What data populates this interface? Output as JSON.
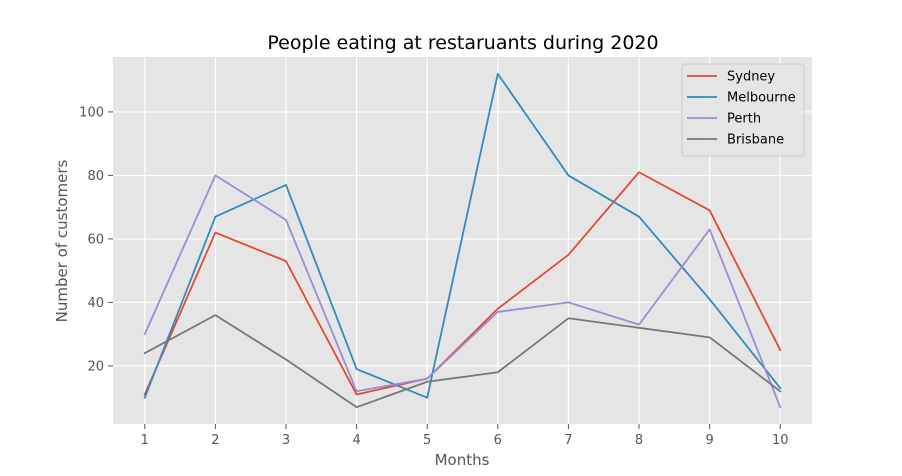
{
  "chart_data": {
    "type": "line",
    "title": "People eating at restaruants during 2020",
    "xlabel": "Months",
    "ylabel": "Number of customers",
    "x": [
      1,
      2,
      3,
      4,
      5,
      6,
      7,
      8,
      9,
      10
    ],
    "xlim": [
      0.55,
      10.45
    ],
    "ylim": [
      1.7,
      117.3
    ],
    "yticks": [
      20,
      40,
      60,
      80,
      100
    ],
    "grid": true,
    "legend_position": "top-right",
    "series": [
      {
        "name": "Sydney",
        "color": "#E24A33",
        "values": [
          11,
          62,
          53,
          11,
          16,
          38,
          55,
          81,
          69,
          25
        ]
      },
      {
        "name": "Melbourne",
        "color": "#348ABD",
        "values": [
          10,
          67,
          77,
          19,
          10,
          112,
          80,
          67,
          41,
          13
        ]
      },
      {
        "name": "Perth",
        "color": "#988ED5",
        "values": [
          30,
          80,
          66,
          12,
          16,
          37,
          40,
          33,
          63,
          7
        ]
      },
      {
        "name": "Brisbane",
        "color": "#777777",
        "values": [
          24,
          36,
          22,
          7,
          15,
          18,
          35,
          32,
          29,
          12
        ]
      }
    ]
  }
}
